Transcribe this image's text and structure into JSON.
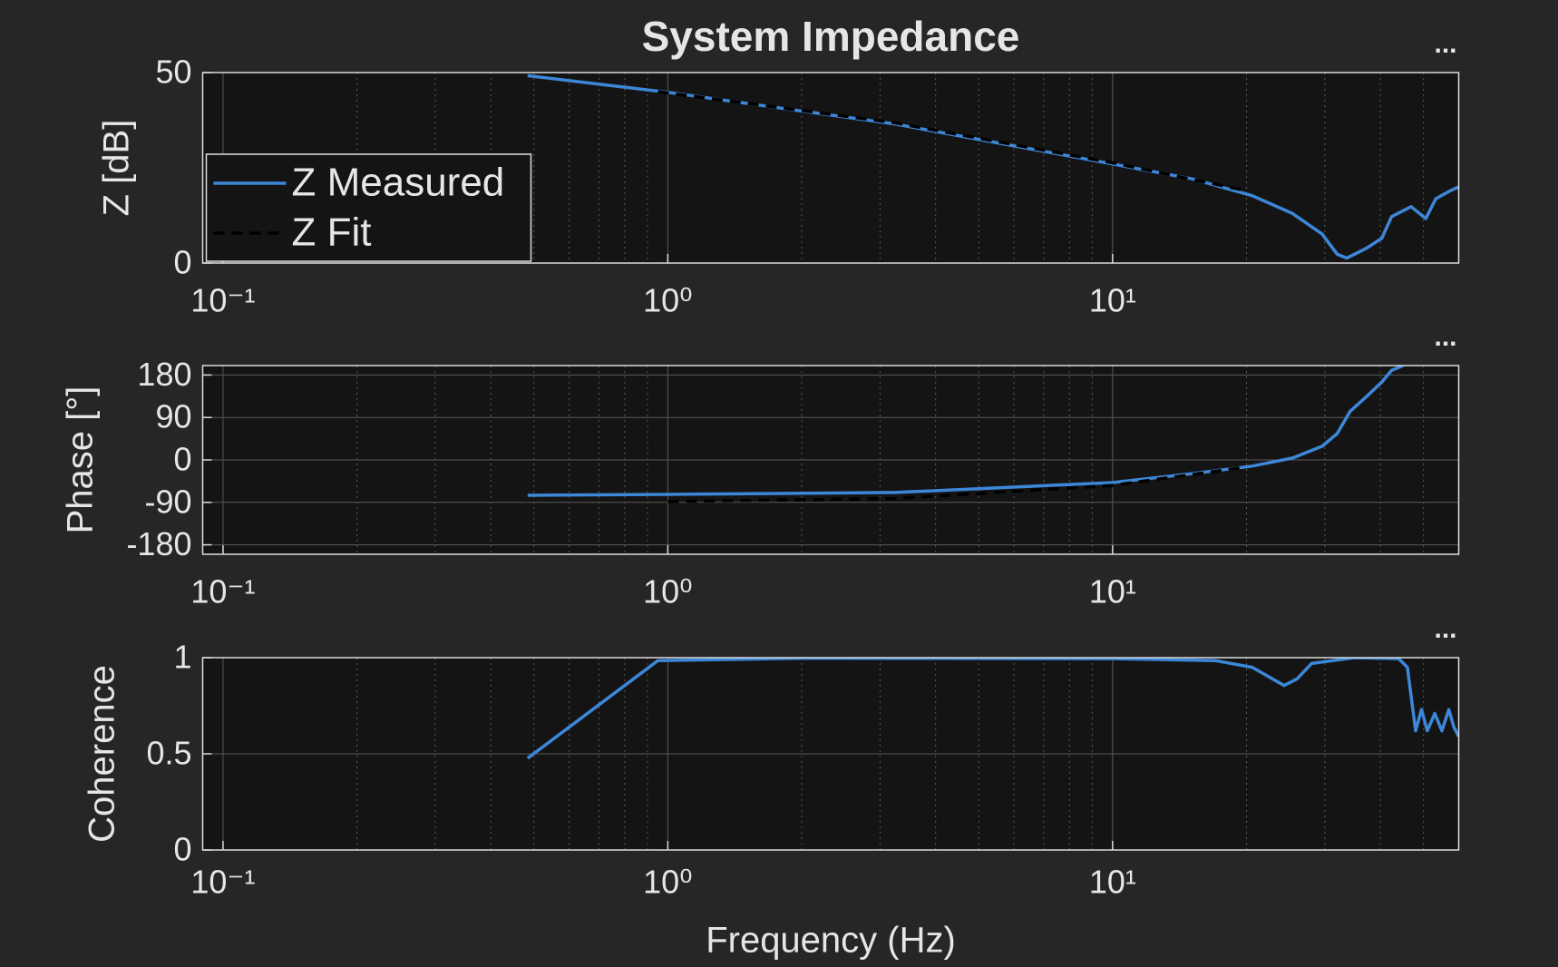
{
  "chart_data": [
    {
      "type": "line",
      "title": "System Impedance",
      "ylabel": "Z [dB]",
      "toolbar": "...",
      "xscale": "log",
      "xlim": [
        0.09,
        60
      ],
      "ylim": [
        0,
        50
      ],
      "xticks": [
        {
          "value": 0.1,
          "label": "10⁻¹"
        },
        {
          "value": 1,
          "label": "10⁰"
        },
        {
          "value": 10,
          "label": "10¹"
        }
      ],
      "yticks": [
        0,
        50
      ],
      "grid": true,
      "xminorgrid": true,
      "legend": "southwest",
      "series": [
        {
          "name": "Z Measured",
          "color": "#3d87d8",
          "linestyle": "solid",
          "x": [
            0.484,
            1.0,
            3.24,
            10,
            15.1,
            20.6,
            25.4,
            29.6,
            32,
            33.6,
            35.4,
            37.2,
            40.3,
            42.4,
            46.9,
            50.6,
            53.3,
            57.5,
            60
          ],
          "values": [
            49.2,
            44.8,
            36.5,
            26,
            22.1,
            17.7,
            13,
            7.6,
            2.3,
            1.3,
            2.6,
            3.9,
            6.5,
            12.2,
            14.8,
            11.7,
            16.9,
            19,
            20
          ]
        },
        {
          "name": "Z Fit",
          "color": "#000000",
          "linestyle": "dashed",
          "x": [
            0.95,
            3.24,
            10,
            20
          ],
          "values": [
            45,
            36.8,
            26.3,
            19
          ]
        }
      ]
    },
    {
      "type": "line",
      "ylabel": "Phase [°]",
      "toolbar": "...",
      "xscale": "log",
      "xlim": [
        0.09,
        60
      ],
      "ylim": [
        -200,
        200
      ],
      "xticks": [
        {
          "value": 0.1,
          "label": "10⁻¹"
        },
        {
          "value": 1,
          "label": "10⁰"
        },
        {
          "value": 10,
          "label": "10¹"
        }
      ],
      "yticks": [
        -180,
        -90,
        0,
        90,
        180
      ],
      "grid": true,
      "xminorgrid": true,
      "series": [
        {
          "name": "Z Measured",
          "color": "#3d87d8",
          "linestyle": "solid",
          "x": [
            0.484,
            1.0,
            3.24,
            10,
            15.1,
            20.6,
            25.4,
            29.6,
            32,
            34.2,
            37.2,
            40.3,
            42.4,
            45
          ],
          "values": [
            -75,
            -73,
            -69,
            -48,
            -29,
            -13,
            4,
            29,
            56,
            103,
            134,
            165,
            190,
            200
          ]
        },
        {
          "name": "Z Fit",
          "color": "#000000",
          "linestyle": "dashed",
          "x": [
            1.0,
            3.24,
            10,
            20
          ],
          "values": [
            -88,
            -82,
            -54,
            -15
          ]
        }
      ]
    },
    {
      "type": "line",
      "ylabel": "Coherence",
      "xlabel": "Frequency (Hz)",
      "toolbar": "...",
      "xscale": "log",
      "xlim": [
        0.09,
        60
      ],
      "ylim": [
        0,
        1
      ],
      "xticks": [
        {
          "value": 0.1,
          "label": "10⁻¹"
        },
        {
          "value": 1,
          "label": "10⁰"
        },
        {
          "value": 10,
          "label": "10¹"
        }
      ],
      "yticks": [
        0,
        0.5,
        1
      ],
      "grid": true,
      "xminorgrid": true,
      "series": [
        {
          "name": "Coherence",
          "color": "#3d87d8",
          "linestyle": "solid",
          "x": [
            0.484,
            0.95,
            2,
            10,
            17,
            20.6,
            24.3,
            26,
            28,
            35,
            44,
            46,
            48,
            49.5,
            51,
            53,
            55,
            57,
            58.5,
            60
          ],
          "values": [
            0.477,
            0.985,
            0.997,
            0.995,
            0.985,
            0.95,
            0.855,
            0.89,
            0.97,
            1.0,
            0.995,
            0.95,
            0.62,
            0.73,
            0.62,
            0.71,
            0.62,
            0.73,
            0.64,
            0.59
          ]
        }
      ]
    }
  ]
}
